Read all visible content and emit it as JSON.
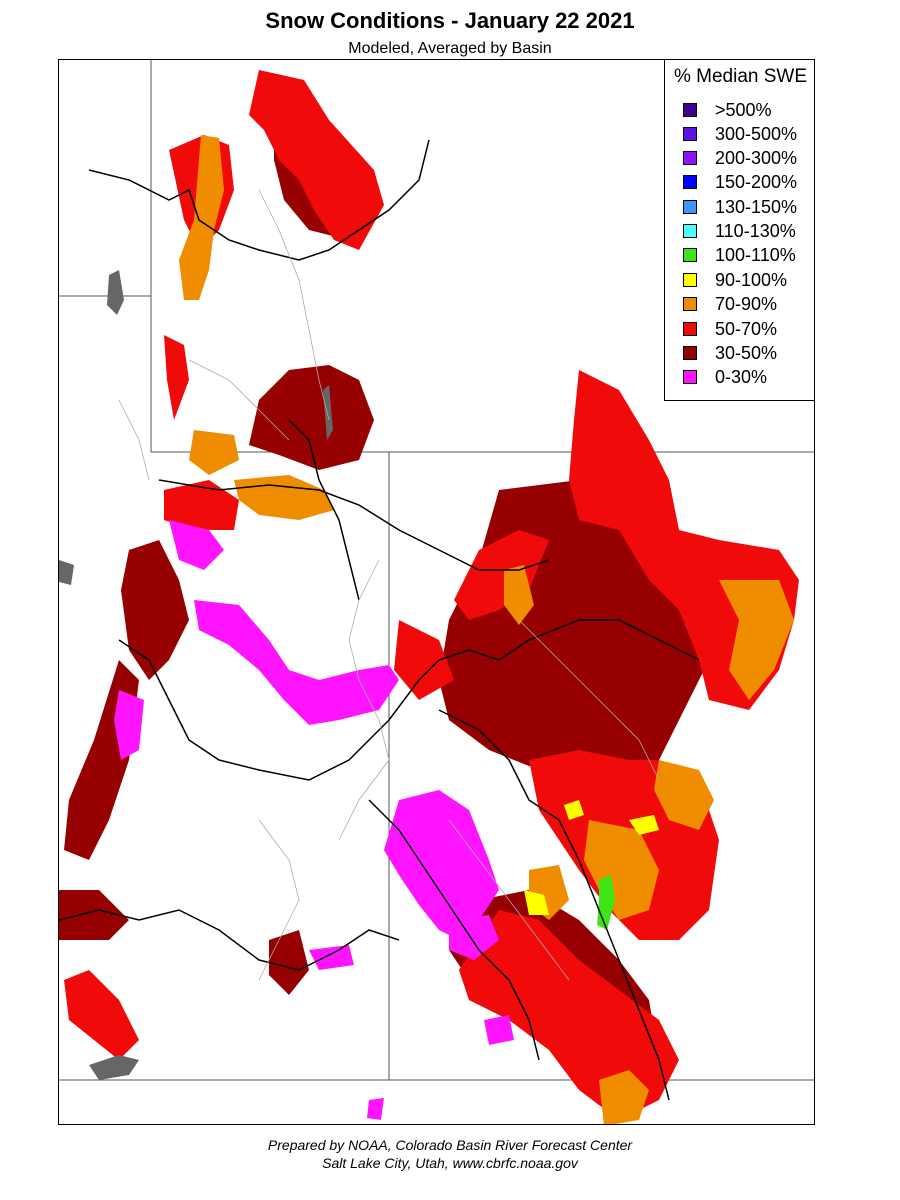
{
  "title": "Snow Conditions - January 22 2021",
  "subtitle": "Modeled, Averaged by Basin",
  "legend": {
    "title": "% Median SWE",
    "items": [
      {
        "label": ">500%",
        "color": "#3d0096"
      },
      {
        "label": "300-500%",
        "color": "#5a14e6"
      },
      {
        "label": "200-300%",
        "color": "#8c14ff"
      },
      {
        "label": "150-200%",
        "color": "#0000ff"
      },
      {
        "label": "130-150%",
        "color": "#3c96ff"
      },
      {
        "label": "110-130%",
        "color": "#46ffff"
      },
      {
        "label": "100-110%",
        "color": "#3ce614"
      },
      {
        "label": "90-100%",
        "color": "#ffff00"
      },
      {
        "label": "70-90%",
        "color": "#f08c00"
      },
      {
        "label": "50-70%",
        "color": "#f00a0a"
      },
      {
        "label": "30-50%",
        "color": "#960000"
      },
      {
        "label": "0-30%",
        "color": "#ff14ff"
      }
    ]
  },
  "credits": {
    "line1": "Prepared by NOAA, Colorado Basin River Forecast Center",
    "line2": "Salt Lake City, Utah, www.cbrfc.noaa.gov"
  }
}
